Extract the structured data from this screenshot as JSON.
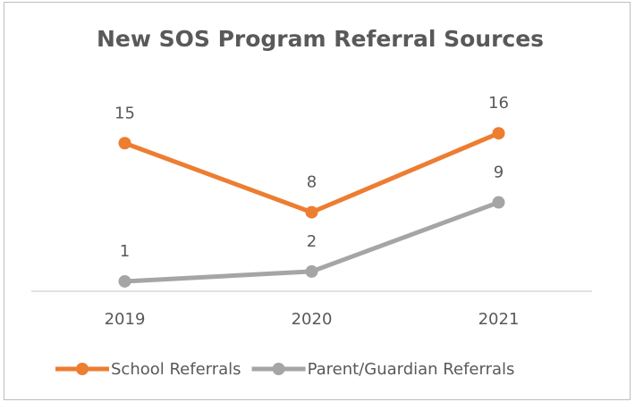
{
  "chart_data": {
    "type": "line",
    "title": "New SOS Program Referral Sources",
    "categories": [
      "2019",
      "2020",
      "2021"
    ],
    "series": [
      {
        "name": "School Referrals",
        "color": "#ed7d31",
        "values": [
          15,
          8,
          16
        ]
      },
      {
        "name": "Parent/Guardian Referrals",
        "color": "#a5a5a5",
        "values": [
          1,
          2,
          9
        ]
      }
    ],
    "ylim": [
      0,
      20
    ],
    "legend": "bottom"
  }
}
